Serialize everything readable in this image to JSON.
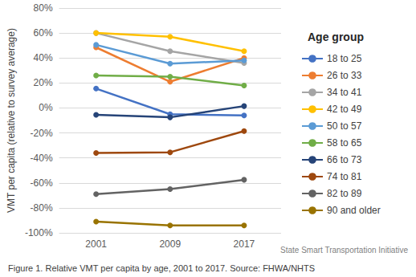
{
  "chart_data": {
    "type": "line",
    "y_label": "VMT per capita (relative to survey average)",
    "legend_title": "Age group",
    "caption": "Figure 1. Relative VMT per capita by age, 2001 to 2017. Source: FHWA/NHTS",
    "annotation": "State Smart Transportation Initiative",
    "categories": [
      "2001",
      "2009",
      "2017"
    ],
    "series": [
      {
        "name": "18 to 25",
        "color": "#4472c4",
        "values": [
          15.5,
          -5,
          -6
        ]
      },
      {
        "name": "26 to 33",
        "color": "#ed7d31",
        "values": [
          48.5,
          21,
          40
        ]
      },
      {
        "name": "34 to 41",
        "color": "#a5a5a5",
        "values": [
          60,
          45.5,
          36
        ]
      },
      {
        "name": "42 to 49",
        "color": "#ffc000",
        "values": [
          60,
          57,
          45.5
        ]
      },
      {
        "name": "50 to 57",
        "color": "#5b9bd5",
        "values": [
          50.5,
          35.5,
          38
        ]
      },
      {
        "name": "58 to 65",
        "color": "#70ad47",
        "values": [
          26,
          25,
          18
        ]
      },
      {
        "name": "66 to 73",
        "color": "#264478",
        "values": [
          -5.5,
          -7.5,
          1.5
        ]
      },
      {
        "name": "74 to 81",
        "color": "#9e480e",
        "values": [
          -36,
          -35.5,
          -18.5
        ]
      },
      {
        "name": "82 to 89",
        "color": "#636363",
        "values": [
          -69,
          -65,
          -57.5
        ]
      },
      {
        "name": "90 and older",
        "color": "#997300",
        "values": [
          -91,
          -94,
          -94
        ]
      }
    ],
    "ylim": [
      -100,
      80
    ],
    "yticks": [
      {
        "value": -100,
        "label": "-100%"
      },
      {
        "value": -80,
        "label": "-80%"
      },
      {
        "value": -60,
        "label": "-60%"
      },
      {
        "value": -40,
        "label": "-40%"
      },
      {
        "value": -20,
        "label": "-20%"
      },
      {
        "value": 0,
        "label": "0%"
      },
      {
        "value": 20,
        "label": "20%"
      },
      {
        "value": 40,
        "label": "40%"
      },
      {
        "value": 60,
        "label": "60%"
      },
      {
        "value": 80,
        "label": "80%"
      }
    ],
    "grid": true,
    "legend": "right",
    "marker": "circle"
  }
}
